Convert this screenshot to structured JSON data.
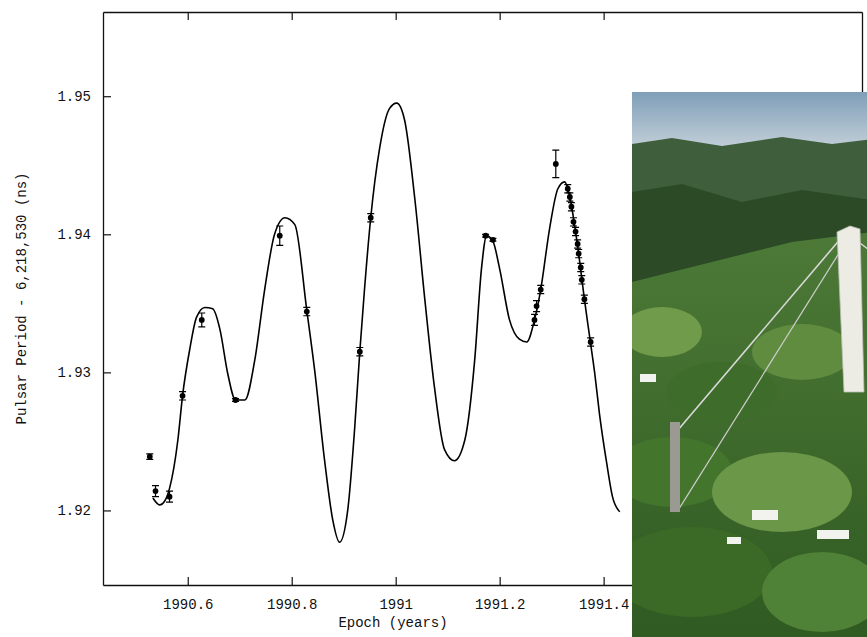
{
  "chart_data": {
    "type": "scatter",
    "x_label": "Epoch (years)",
    "y_label": "Pulsar Period - 6,218,530 (ns)",
    "xlim": [
      1990.437,
      1991.897
    ],
    "ylim": [
      1.9146,
      1.9561
    ],
    "xticks": [
      1990.6,
      1990.8,
      1991,
      1991.2,
      1991.4
    ],
    "yticks": [
      1.92,
      1.93,
      1.94,
      1.95
    ],
    "grid": false,
    "series": [
      {
        "type": "scatter",
        "marker": "circle",
        "color": "#000000",
        "x": [
          1990.527,
          1990.538,
          1990.565,
          1990.59,
          1990.627,
          1990.692,
          1990.777,
          1990.829,
          1990.931,
          1990.952,
          1991.173,
          1991.187,
          1991.267,
          1991.271,
          1991.279,
          1991.308,
          1991.331,
          1991.335,
          1991.338,
          1991.342,
          1991.346,
          1991.35,
          1991.352,
          1991.356,
          1991.358,
          1991.363,
          1991.375
        ],
        "values": [
          1.9239,
          1.9214,
          1.921,
          1.9283,
          1.9338,
          1.928,
          1.9399,
          1.9344,
          1.9315,
          1.9412,
          1.9399,
          1.9396,
          1.9338,
          1.9348,
          1.936,
          1.9451,
          1.9433,
          1.9427,
          1.942,
          1.9409,
          1.9402,
          1.9393,
          1.9386,
          1.9376,
          1.9367,
          1.9353,
          1.9322
        ],
        "errors": [
          0.0002,
          0.0004,
          0.0004,
          0.0003,
          0.0005,
          0.0001,
          0.0007,
          0.0003,
          0.0003,
          0.0003,
          0.0001,
          0.0001,
          0.0004,
          0.0004,
          0.0003,
          0.001,
          0.0003,
          0.0003,
          0.0003,
          0.0003,
          0.0003,
          0.0003,
          0.0003,
          0.0003,
          0.0003,
          0.0003,
          0.0003
        ]
      },
      {
        "type": "line",
        "line_style": "solid",
        "color": "#000000",
        "x": [
          1990.533,
          1990.546,
          1990.556,
          1990.565,
          1990.581,
          1990.59,
          1990.604,
          1990.617,
          1990.633,
          1990.648,
          1990.662,
          1990.677,
          1990.692,
          1990.71,
          1990.729,
          1990.748,
          1990.767,
          1990.787,
          1990.806,
          1990.829,
          1990.844,
          1990.863,
          1990.879,
          1990.892,
          1990.908,
          1990.921,
          1990.931,
          1990.94,
          1990.952,
          1990.969,
          1990.988,
          1991.002,
          1991.017,
          1991.037,
          1991.056,
          1991.075,
          1991.094,
          1991.113,
          1991.133,
          1991.152,
          1991.165,
          1991.175,
          1991.187,
          1991.2,
          1991.219,
          1991.238,
          1991.252,
          1991.267,
          1991.279,
          1991.296,
          1991.312,
          1991.325,
          1991.335,
          1991.344,
          1991.354,
          1991.363,
          1991.373,
          1991.383,
          1991.392,
          1991.406,
          1991.417,
          1991.431
        ],
        "values": [
          1.9209,
          1.9204,
          1.9207,
          1.9216,
          1.9251,
          1.9283,
          1.9317,
          1.934,
          1.9347,
          1.9346,
          1.9331,
          1.9299,
          1.928,
          1.928,
          1.9309,
          1.936,
          1.94,
          1.9412,
          1.9407,
          1.9345,
          1.9302,
          1.9237,
          1.9193,
          1.9177,
          1.9201,
          1.9259,
          1.9315,
          1.936,
          1.9412,
          1.9462,
          1.9491,
          1.9495,
          1.9483,
          1.9425,
          1.9353,
          1.9288,
          1.9244,
          1.9236,
          1.9251,
          1.9309,
          1.9375,
          1.9399,
          1.9395,
          1.9375,
          1.9338,
          1.9324,
          1.9322,
          1.9338,
          1.936,
          1.9404,
          1.9433,
          1.9438,
          1.9427,
          1.9407,
          1.938,
          1.9353,
          1.9326,
          1.9299,
          1.927,
          1.9234,
          1.921,
          1.9199
        ]
      }
    ]
  }
}
